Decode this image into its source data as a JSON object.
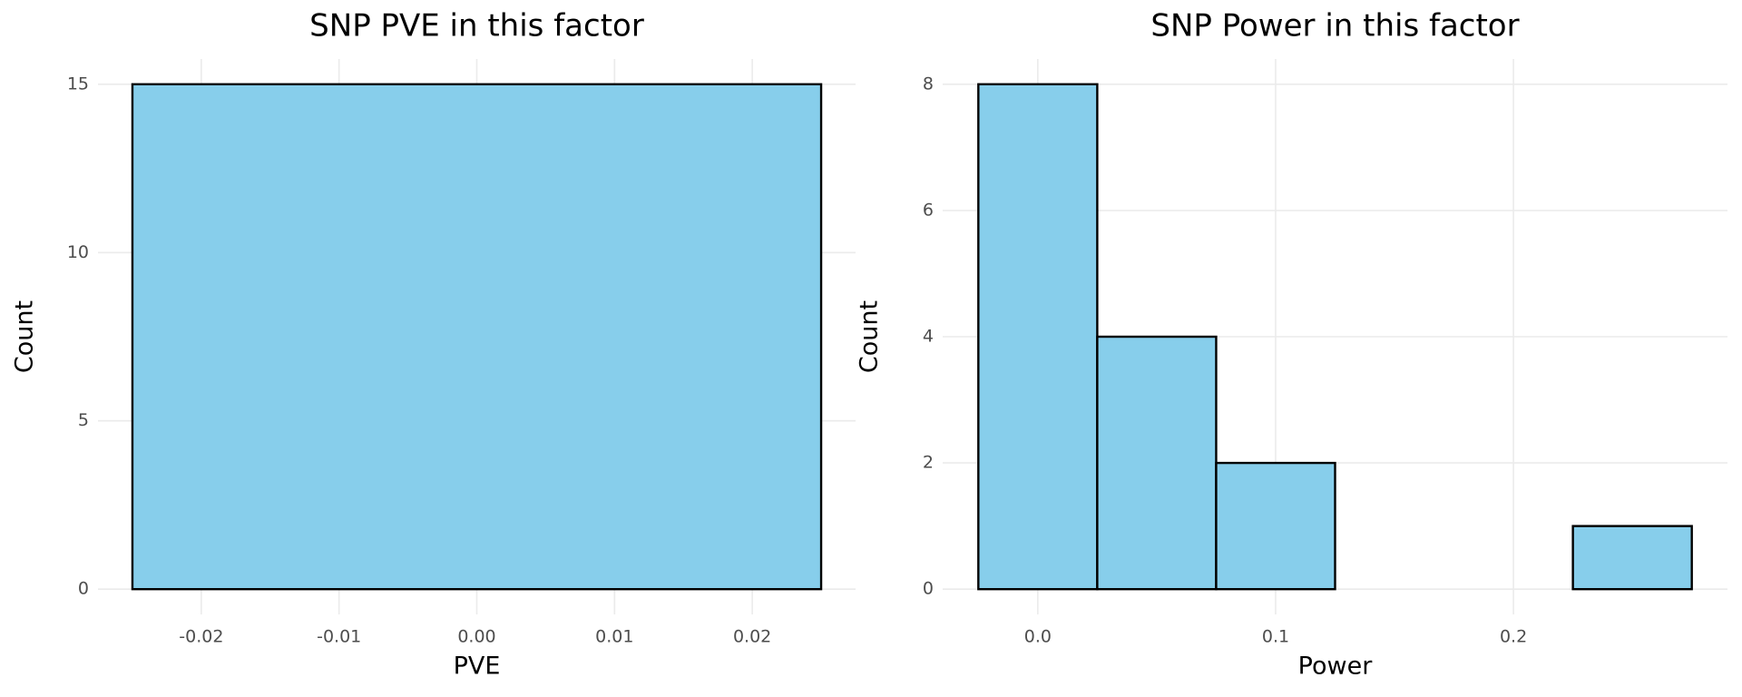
{
  "chart_data": [
    {
      "type": "histogram",
      "title": "SNP PVE in this factor",
      "x_label": "PVE",
      "y_label": "Count",
      "bins": [
        -0.025,
        0.025
      ],
      "counts": [
        15
      ],
      "color": "#87ceeb",
      "edge_color": "#000000",
      "xlim": [
        -0.0275,
        0.0275
      ],
      "xticks": [
        -0.02,
        -0.01,
        {
          "value": 0,
          "label": "0.00"
        },
        0.01,
        0.02
      ],
      "ylim": [
        -0.75,
        15.75
      ],
      "yticks": [
        0,
        5,
        10,
        15
      ],
      "grid": true
    },
    {
      "type": "histogram",
      "title": "SNP Power in this factor",
      "x_label": "Power",
      "y_label": "Count",
      "bins": [
        -0.025,
        0.025,
        0.075,
        0.125,
        0.175,
        0.225,
        0.275
      ],
      "counts": [
        8,
        4,
        2,
        0,
        0,
        1
      ],
      "color": "#87ceeb",
      "edge_color": "#000000",
      "xlim": [
        -0.04,
        0.29
      ],
      "xticks": [
        {
          "value": 0,
          "label": "0.0"
        },
        0.1,
        0.2
      ],
      "ylim": [
        -0.4,
        8.4
      ],
      "yticks": [
        0,
        2,
        4,
        6,
        8
      ],
      "grid": true
    }
  ]
}
